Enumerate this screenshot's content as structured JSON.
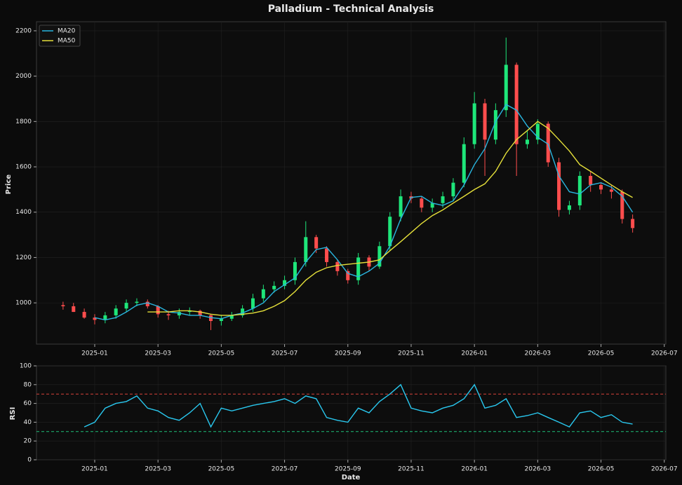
{
  "chart_data": [
    {
      "type": "candlestick",
      "title": "Palladium - Technical Analysis",
      "ylabel": "Price",
      "x": [
        -1,
        -0.67,
        -0.33,
        0,
        0.33,
        0.67,
        1,
        1.33,
        1.67,
        2,
        2.33,
        2.67,
        3,
        3.33,
        3.67,
        4,
        4.33,
        4.67,
        5,
        5.33,
        5.67,
        6,
        6.33,
        6.67,
        7,
        7.33,
        7.67,
        8,
        8.33,
        8.67,
        9,
        9.33,
        9.67,
        10,
        10.33,
        10.67,
        11,
        11.33,
        11.67,
        12,
        12.33,
        12.67,
        13,
        13.33,
        13.67,
        14,
        14.33,
        14.67,
        15,
        15.33,
        15.67,
        16,
        16.33,
        16.67,
        17
      ],
      "open": [
        990,
        985,
        960,
        935,
        925,
        945,
        975,
        1000,
        1005,
        985,
        950,
        945,
        960,
        965,
        945,
        920,
        930,
        945,
        975,
        1020,
        1060,
        1075,
        1100,
        1180,
        1290,
        1240,
        1180,
        1140,
        1100,
        1200,
        1160,
        1250,
        1380,
        1470,
        1460,
        1420,
        1440,
        1470,
        1530,
        1700,
        1880,
        1720,
        1850,
        2050,
        1700,
        1720,
        1790,
        1620,
        1410,
        1430,
        1560,
        1520,
        1500,
        1490,
        1370
      ],
      "high": [
        1005,
        1000,
        975,
        950,
        960,
        990,
        1015,
        1020,
        1015,
        990,
        965,
        975,
        980,
        970,
        950,
        945,
        960,
        990,
        1040,
        1080,
        1095,
        1120,
        1200,
        1360,
        1300,
        1250,
        1190,
        1150,
        1220,
        1210,
        1270,
        1400,
        1500,
        1490,
        1470,
        1460,
        1490,
        1550,
        1730,
        1930,
        1900,
        1880,
        2170,
        2060,
        1760,
        1810,
        1800,
        1640,
        1450,
        1580,
        1580,
        1530,
        1520,
        1500,
        1390
      ],
      "low": [
        970,
        960,
        930,
        905,
        910,
        930,
        960,
        985,
        975,
        935,
        925,
        930,
        945,
        930,
        880,
        900,
        920,
        935,
        960,
        1005,
        1045,
        1060,
        1080,
        1160,
        1220,
        1160,
        1120,
        1085,
        1080,
        1140,
        1150,
        1230,
        1360,
        1440,
        1400,
        1400,
        1420,
        1450,
        1510,
        1680,
        1560,
        1700,
        1820,
        1560,
        1680,
        1700,
        1600,
        1380,
        1390,
        1410,
        1490,
        1480,
        1460,
        1350,
        1310
      ],
      "close": [
        985,
        960,
        935,
        925,
        945,
        975,
        1000,
        1005,
        985,
        950,
        945,
        960,
        965,
        945,
        920,
        930,
        945,
        975,
        1020,
        1060,
        1075,
        1100,
        1180,
        1290,
        1240,
        1180,
        1140,
        1100,
        1200,
        1160,
        1250,
        1380,
        1470,
        1460,
        1420,
        1440,
        1470,
        1530,
        1700,
        1880,
        1720,
        1850,
        2050,
        1700,
        1720,
        1790,
        1620,
        1410,
        1430,
        1560,
        1520,
        1500,
        1490,
        1370,
        1330
      ],
      "up_color": "#1ee67a",
      "down_color": "#ff4d4d",
      "series": [
        {
          "name": "MA20",
          "color": "#29b6e0",
          "values": [
            null,
            null,
            null,
            935,
            925,
            935,
            960,
            990,
            1000,
            985,
            960,
            955,
            945,
            945,
            935,
            930,
            945,
            955,
            975,
            1000,
            1050,
            1080,
            1110,
            1180,
            1235,
            1245,
            1190,
            1130,
            1115,
            1140,
            1175,
            1250,
            1370,
            1465,
            1470,
            1440,
            1430,
            1450,
            1520,
            1610,
            1680,
            1800,
            1875,
            1850,
            1780,
            1730,
            1700,
            1560,
            1490,
            1480,
            1520,
            1530,
            1510,
            1470,
            1400
          ]
        },
        {
          "name": "MA50",
          "color": "#e5e03a",
          "values": [
            null,
            null,
            null,
            null,
            null,
            null,
            null,
            null,
            960,
            960,
            960,
            965,
            965,
            960,
            950,
            945,
            945,
            950,
            955,
            965,
            985,
            1010,
            1050,
            1100,
            1135,
            1155,
            1165,
            1170,
            1175,
            1180,
            1190,
            1230,
            1270,
            1310,
            1350,
            1385,
            1410,
            1440,
            1470,
            1500,
            1525,
            1580,
            1660,
            1720,
            1760,
            1800,
            1770,
            1720,
            1670,
            1610,
            1580,
            1550,
            1520,
            1490,
            1465
          ]
        }
      ],
      "xlim": [
        -1.84,
        18.05
      ],
      "xticks": [
        {
          "value": 0,
          "label": "2025-01"
        },
        {
          "value": 2,
          "label": "2025-03"
        },
        {
          "value": 4,
          "label": "2025-05"
        },
        {
          "value": 6,
          "label": "2025-07"
        },
        {
          "value": 8,
          "label": "2025-09"
        },
        {
          "value": 10,
          "label": "2025-11"
        },
        {
          "value": 12,
          "label": "2026-01"
        },
        {
          "value": 14,
          "label": "2026-03"
        },
        {
          "value": 16,
          "label": "2026-05"
        },
        {
          "value": 18,
          "label": "2026-07"
        }
      ],
      "ylim": [
        818,
        2240
      ],
      "yticks": [
        1000,
        1200,
        1400,
        1600,
        1800,
        2000,
        2200
      ],
      "grid": true,
      "legend": "upper left"
    },
    {
      "type": "line",
      "ylabel": "RSI",
      "xlabel": "Date",
      "series": [
        {
          "name": "RSI",
          "color": "#29c8ef",
          "values": [
            null,
            null,
            35,
            40,
            55,
            60,
            62,
            68,
            55,
            52,
            45,
            42,
            50,
            60,
            35,
            55,
            52,
            55,
            58,
            60,
            62,
            65,
            60,
            68,
            65,
            45,
            42,
            40,
            55,
            50,
            62,
            70,
            80,
            55,
            52,
            50,
            55,
            58,
            65,
            80,
            55,
            58,
            65,
            45,
            47,
            50,
            45,
            40,
            35,
            50,
            52,
            45,
            48,
            40,
            38
          ]
        }
      ],
      "hlines": [
        {
          "value": 70,
          "color": "#d9413b"
        },
        {
          "value": 30,
          "color": "#1ec27a"
        }
      ],
      "ylim": [
        0,
        100
      ],
      "yticks": [
        0,
        20,
        40,
        60,
        80,
        100
      ],
      "grid": true
    }
  ]
}
